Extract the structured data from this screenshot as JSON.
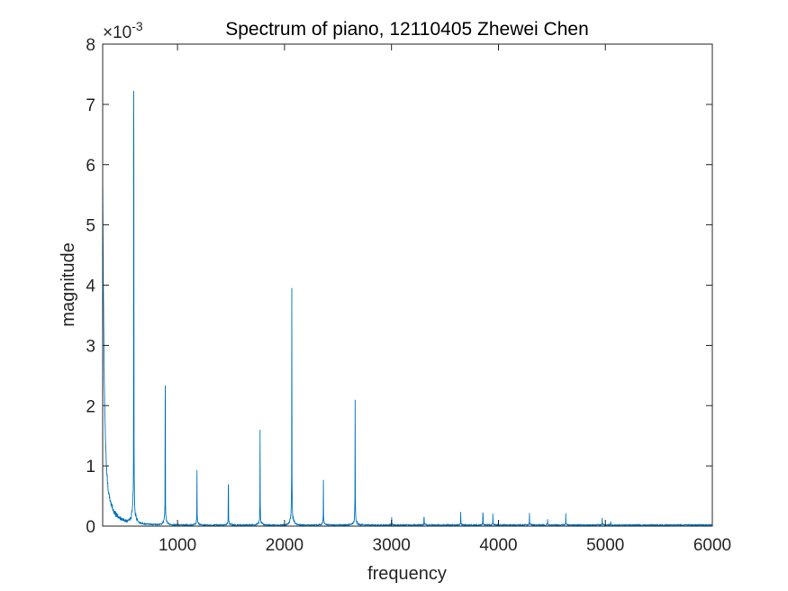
{
  "chart_data": {
    "type": "line",
    "title": "Spectrum of piano, 12110405 Zhewei Chen",
    "xlabel": "frequency",
    "ylabel": "magnitude",
    "xlim": [
      300,
      6000
    ],
    "ylim": [
      0,
      0.008
    ],
    "y_exponent_label": "×10",
    "y_exponent_value": "-3",
    "x_ticks": [
      {
        "value": 1000,
        "label": "1000"
      },
      {
        "value": 2000,
        "label": "2000"
      },
      {
        "value": 3000,
        "label": "3000"
      },
      {
        "value": 4000,
        "label": "4000"
      },
      {
        "value": 5000,
        "label": "5000"
      },
      {
        "value": 6000,
        "label": "6000"
      }
    ],
    "y_ticks": [
      {
        "value": 0,
        "label": "0"
      },
      {
        "value": 0.001,
        "label": "1"
      },
      {
        "value": 0.002,
        "label": "2"
      },
      {
        "value": 0.003,
        "label": "3"
      },
      {
        "value": 0.004,
        "label": "4"
      },
      {
        "value": 0.005,
        "label": "5"
      },
      {
        "value": 0.006,
        "label": "6"
      },
      {
        "value": 0.007,
        "label": "7"
      },
      {
        "value": 0.008,
        "label": "8"
      }
    ],
    "grid": false,
    "series": [
      {
        "color": "#0072BD",
        "low_freq_start_peak": {
          "x": 300,
          "y": 0.0048
        },
        "peaks": [
          {
            "x": 591,
            "y": 0.00722
          },
          {
            "x": 885,
            "y": 0.00233
          },
          {
            "x": 1182,
            "y": 0.00088
          },
          {
            "x": 1475,
            "y": 0.00069
          },
          {
            "x": 1772,
            "y": 0.00148
          },
          {
            "x": 2068,
            "y": 0.00372
          },
          {
            "x": 2364,
            "y": 0.00071
          },
          {
            "x": 2660,
            "y": 0.002
          },
          {
            "x": 3002,
            "y": 0.00012
          },
          {
            "x": 3305,
            "y": 0.00015
          },
          {
            "x": 3648,
            "y": 0.0002
          },
          {
            "x": 3855,
            "y": 0.00022
          },
          {
            "x": 3948,
            "y": 0.00019
          },
          {
            "x": 4290,
            "y": 0.00018
          },
          {
            "x": 4460,
            "y": 9e-05
          },
          {
            "x": 4630,
            "y": 0.00018
          },
          {
            "x": 4970,
            "y": 0.00011
          },
          {
            "x": 5050,
            "y": 6e-05
          }
        ],
        "noise_floor": 2e-05
      }
    ]
  }
}
